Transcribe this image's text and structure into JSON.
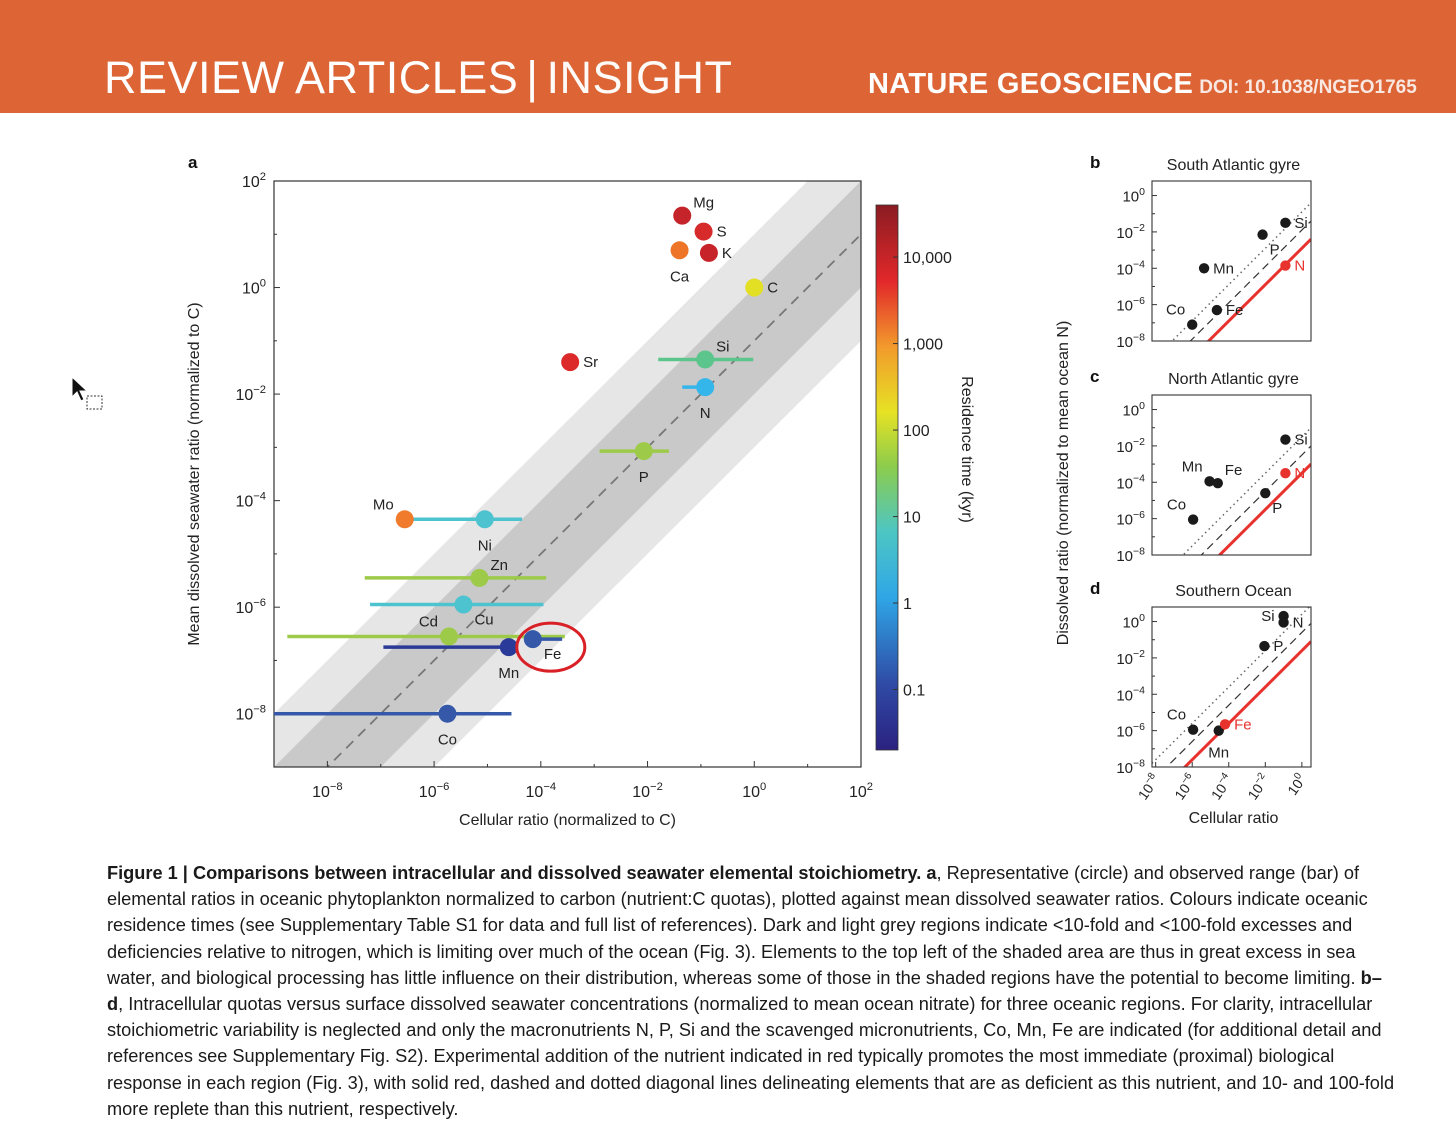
{
  "header": {
    "section_left": "REVIEW ARTICLES",
    "separator": "|",
    "section_right": "INSIGHT",
    "journal": "NATURE GEOSCIENCE",
    "doi": "DOI: 10.1038/NGEO1765",
    "color": "#dc6435"
  },
  "chart_data": [
    {
      "panel": "a",
      "type": "scatter",
      "xlabel": "Cellular ratio (normalized to C)",
      "ylabel": "Mean dissolved seawater ratio (normalized to C)",
      "xscale": "log10",
      "yscale": "log10",
      "xlim_exp": [
        -9,
        2
      ],
      "ylim_exp": [
        -9,
        2
      ],
      "xticks": [
        -8,
        -6,
        -4,
        -2,
        0,
        2
      ],
      "yticks": [
        -8,
        -6,
        -4,
        -2,
        0,
        2
      ],
      "colorbar": {
        "label": "Residence time (kyr)",
        "ticks": [
          {
            "label": "10,000",
            "value": 10000
          },
          {
            "label": "1,000",
            "value": 1000
          },
          {
            "label": "100",
            "value": 100
          },
          {
            "label": "10",
            "value": 10
          },
          {
            "label": "1",
            "value": 1
          },
          {
            "label": "0.1",
            "value": 0.1
          }
        ],
        "range": [
          0.02,
          40000
        ]
      },
      "bands": {
        "dark_fold": 10,
        "light_fold": 100,
        "reference_line": "1:1 dashed"
      },
      "points": [
        {
          "label": "Mg",
          "x": -1.35,
          "y": 1.35,
          "color": "#c4242a",
          "label_pos": "ur"
        },
        {
          "label": "S",
          "x": -0.95,
          "y": 1.05,
          "color": "#d72a2a",
          "label_pos": "r"
        },
        {
          "label": "Ca",
          "x": -1.4,
          "y": 0.7,
          "color": "#ee7528",
          "label_pos": "b"
        },
        {
          "label": "K",
          "x": -0.85,
          "y": 0.65,
          "color": "#c7232a",
          "label_pos": "r"
        },
        {
          "label": "C",
          "x": 0.0,
          "y": 0.0,
          "color": "#e2df24",
          "label_pos": "r"
        },
        {
          "label": "Sr",
          "x": -3.45,
          "y": -1.4,
          "color": "#dc2a2a",
          "label_pos": "r"
        },
        {
          "label": "Si",
          "x": -0.92,
          "y": -1.35,
          "color": "#5cc58b",
          "xlo": -1.8,
          "xhi": -0.02,
          "label_pos": "ur"
        },
        {
          "label": "N",
          "x": -0.92,
          "y": -1.87,
          "color": "#35b6ea",
          "xlo": -1.35,
          "xhi": -0.92,
          "label_pos": "b"
        },
        {
          "label": "P",
          "x": -2.07,
          "y": -3.07,
          "color": "#9dcb49",
          "xlo": -2.9,
          "xhi": -1.6,
          "label_pos": "b"
        },
        {
          "label": "Mo",
          "x": -6.55,
          "y": -4.35,
          "color": "#f07b2d",
          "label_pos": "ul"
        },
        {
          "label": "Ni",
          "x": -5.05,
          "y": -4.35,
          "color": "#4dc3cf",
          "xlo": -6.55,
          "xhi": -4.35,
          "label_pos": "b"
        },
        {
          "label": "Zn",
          "x": -5.15,
          "y": -5.45,
          "color": "#9dcb49",
          "xlo": -7.3,
          "xhi": -3.9,
          "label_pos": "ur"
        },
        {
          "label": "Cu",
          "x": -5.45,
          "y": -5.95,
          "color": "#4dc3cf",
          "xlo": -7.2,
          "xhi": -3.95,
          "label_pos": "br"
        },
        {
          "label": "Cd",
          "x": -5.72,
          "y": -6.55,
          "color": "#9dcb49",
          "xlo": -8.75,
          "xhi": -3.55,
          "label_pos": "ul"
        },
        {
          "label": "Fe",
          "x": -4.15,
          "y": -6.6,
          "color": "#3658a9",
          "xlo": -4.15,
          "xhi": -3.6,
          "label_pos": "br"
        },
        {
          "label": "Mn",
          "x": -4.6,
          "y": -6.75,
          "color": "#2a3a98",
          "xlo": -6.95,
          "xhi": -4.6,
          "label_pos": "b"
        },
        {
          "label": "Co",
          "x": -5.75,
          "y": -8.0,
          "color": "#3658a9",
          "xlo": -9.0,
          "xhi": -4.55,
          "label_pos": "b"
        }
      ],
      "highlight": "Fe",
      "highlight_color": "#d92027"
    },
    {
      "panel": "b",
      "type": "scatter",
      "title": "South Atlantic gyre",
      "ylim_exp": [
        -8,
        0.8
      ],
      "xlim_exp": [
        -8.2,
        0.5
      ],
      "yticks": [
        0,
        -2,
        -4,
        -6,
        -8
      ],
      "limiting_nutrient": "N",
      "red_line_intercept": -2.9,
      "points": [
        {
          "label": "Co",
          "x": -6.0,
          "y": -7.1,
          "color": "#1a1a1a",
          "label_pos": "ul"
        },
        {
          "label": "Fe",
          "x": -4.65,
          "y": -6.3,
          "color": "#1a1a1a",
          "label_pos": "r"
        },
        {
          "label": "Mn",
          "x": -5.35,
          "y": -4.0,
          "color": "#1a1a1a",
          "label_pos": "r"
        },
        {
          "label": "P",
          "x": -2.15,
          "y": -2.15,
          "color": "#1a1a1a",
          "label_pos": "br"
        },
        {
          "label": "Si",
          "x": -0.9,
          "y": -1.5,
          "color": "#1a1a1a",
          "label_pos": "r"
        },
        {
          "label": "N",
          "x": -0.9,
          "y": -3.85,
          "color": "#e8322d",
          "label_pos": "r"
        }
      ]
    },
    {
      "panel": "c",
      "type": "scatter",
      "title": "North Atlantic gyre",
      "ylim_exp": [
        -8,
        0.8
      ],
      "xlim_exp": [
        -8.2,
        0.5
      ],
      "yticks": [
        0,
        -2,
        -4,
        -6,
        -8
      ],
      "limiting_nutrient": "N",
      "red_line_intercept": -3.5,
      "points": [
        {
          "label": "Co",
          "x": -5.95,
          "y": -6.05,
          "color": "#1a1a1a",
          "label_pos": "ul"
        },
        {
          "label": "Mn",
          "x": -5.05,
          "y": -3.95,
          "color": "#1a1a1a",
          "label_pos": "ul"
        },
        {
          "label": "Fe",
          "x": -4.6,
          "y": -4.05,
          "color": "#1a1a1a",
          "label_pos": "ur"
        },
        {
          "label": "P",
          "x": -2.0,
          "y": -4.6,
          "color": "#1a1a1a",
          "label_pos": "br"
        },
        {
          "label": "Si",
          "x": -0.9,
          "y": -1.65,
          "color": "#1a1a1a",
          "label_pos": "r"
        },
        {
          "label": "N",
          "x": -0.9,
          "y": -3.5,
          "color": "#e8322d",
          "label_pos": "r"
        }
      ]
    },
    {
      "panel": "d",
      "type": "scatter",
      "title": "Southern Ocean",
      "ylim_exp": [
        -8,
        0.8
      ],
      "xlim_exp": [
        -8.2,
        0.5
      ],
      "yticks": [
        0,
        -2,
        -4,
        -6,
        -8
      ],
      "xticks": [
        -8,
        -6,
        -4,
        -2,
        0
      ],
      "xlabel": "Cellular ratio",
      "ylabel": "Dissolved ratio (normalized to mean ocean N)",
      "limiting_nutrient": "Fe",
      "red_line_intercept": -1.6,
      "points": [
        {
          "label": "Co",
          "x": -5.95,
          "y": -5.95,
          "color": "#1a1a1a",
          "label_pos": "ul"
        },
        {
          "label": "Mn",
          "x": -4.55,
          "y": -6.0,
          "color": "#1a1a1a",
          "label_pos": "b"
        },
        {
          "label": "Fe",
          "x": -4.2,
          "y": -5.65,
          "color": "#e8322d",
          "label_pos": "r"
        },
        {
          "label": "P",
          "x": -2.05,
          "y": -1.35,
          "color": "#1a1a1a",
          "label_pos": "r"
        },
        {
          "label": "Si",
          "x": -1.0,
          "y": 0.3,
          "color": "#1a1a1a",
          "label_pos": "l"
        },
        {
          "label": "N",
          "x": -1.0,
          "y": -0.05,
          "color": "#1a1a1a",
          "label_pos": "r"
        }
      ]
    }
  ],
  "figure": {
    "panel_labels": [
      "a",
      "b",
      "c",
      "d"
    ],
    "sub_ylabel": "Dissolved ratio (normalized to mean ocean N)",
    "sub_xlabel": "Cellular ratio"
  },
  "caption": {
    "figure_label": "Figure 1 | Comparisons between intracellular and dissolved seawater elemental stoichiometry. a",
    "part1": ", Representative (circle) and observed range (bar) of elemental ratios in oceanic phytoplankton normalized to carbon (nutrient:C quotas), plotted against mean dissolved seawater ratios. Colours indicate oceanic residence times (see Supplementary Table S1 for data and full list of references). Dark and light grey regions indicate <10-fold and <100-fold excesses and deficiencies relative to nitrogen, which is limiting over much of the ocean (Fig. 3). Elements to the top left of the shaded area are thus in great excess in sea water, and biological processing has little influence on their distribution, whereas some of those in the shaded regions have the potential to become limiting. ",
    "bd_label": "b–d",
    "part2": ", Intracellular quotas versus surface dissolved seawater concentrations (normalized to mean ocean nitrate) for three oceanic regions. For clarity, intracellular stoichiometric variability is neglected and only the macronutrients N, P, Si and the scavenged micronutrients, Co, Mn, Fe are indicated (for additional detail and references see Supplementary Fig. S2). Experimental addition of the nutrient indicated in red typically promotes the most immediate (proximal) biological response in each region (Fig. 3), with solid red, dashed and dotted diagonal lines delineating elements that are as deficient as this nutrient, and 10- and 100-fold more replete than this nutrient, respectively."
  }
}
